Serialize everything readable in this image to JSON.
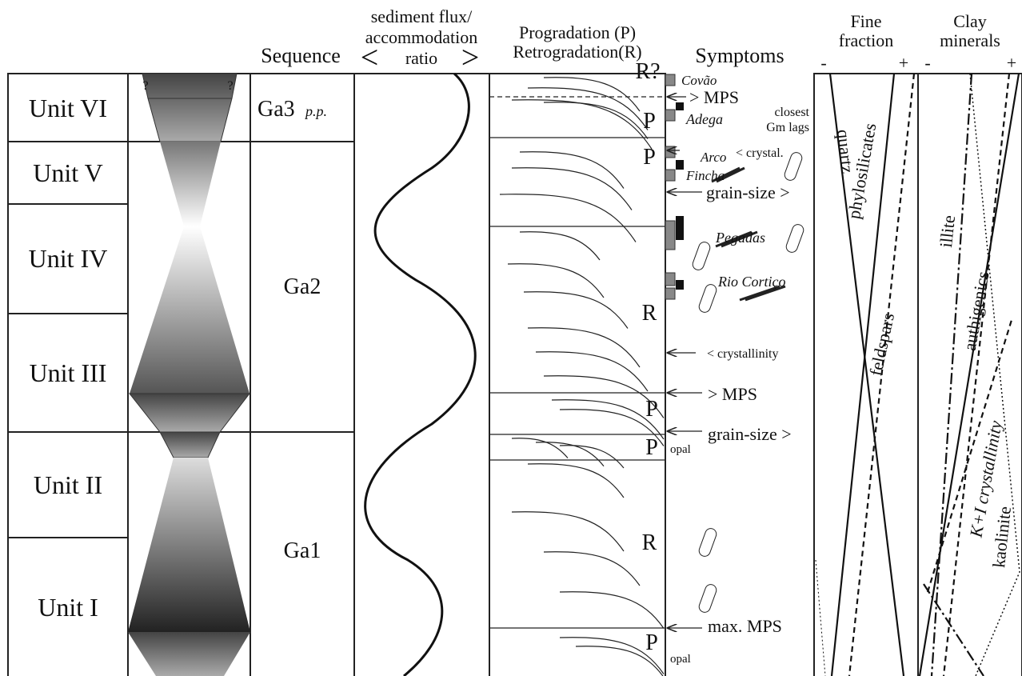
{
  "headers": {
    "sequence": "Sequence",
    "flux": [
      "sediment flux/",
      "accommodation",
      "ratio"
    ],
    "flux_less": "<",
    "flux_more": ">",
    "progradation": [
      "Progradation (P)",
      "Retrogradation(R)"
    ],
    "symptoms": "Symptoms",
    "fine_fraction": [
      "Fine",
      "fraction"
    ],
    "fine_minus": "-",
    "fine_plus": "+",
    "clay": [
      "Clay",
      "minerals"
    ],
    "clay_minus": "-",
    "clay_plus": "+"
  },
  "units": [
    "Unit VI",
    "Unit V",
    "Unit IV",
    "Unit III",
    "Unit II",
    "Unit I"
  ],
  "uncertain": [
    "?",
    "?"
  ],
  "sequences": [
    {
      "name": "Ga3",
      "qualifier": "p.p."
    },
    {
      "name": "Ga2"
    },
    {
      "name": "Ga1"
    }
  ],
  "trends": [
    "R?",
    "P",
    "P",
    "R",
    "P",
    "P",
    "R",
    "P"
  ],
  "symptoms": [
    "Covão",
    "> MPS",
    "Adega",
    "closest",
    "Gm lags",
    "Arco",
    "< crystal.",
    "Fincha",
    "grain-size >",
    "Pegadas",
    "Rio Cortiço",
    "< crystallinity",
    "> MPS",
    "grain-size >",
    "opal",
    "max. MPS",
    "opal"
  ],
  "fine_fraction_curves": [
    "quartz",
    "phylosilicates",
    "feldspars"
  ],
  "clay_curves": [
    "illite",
    "authigenics",
    "K+I crystallinity",
    "kaolinite"
  ]
}
